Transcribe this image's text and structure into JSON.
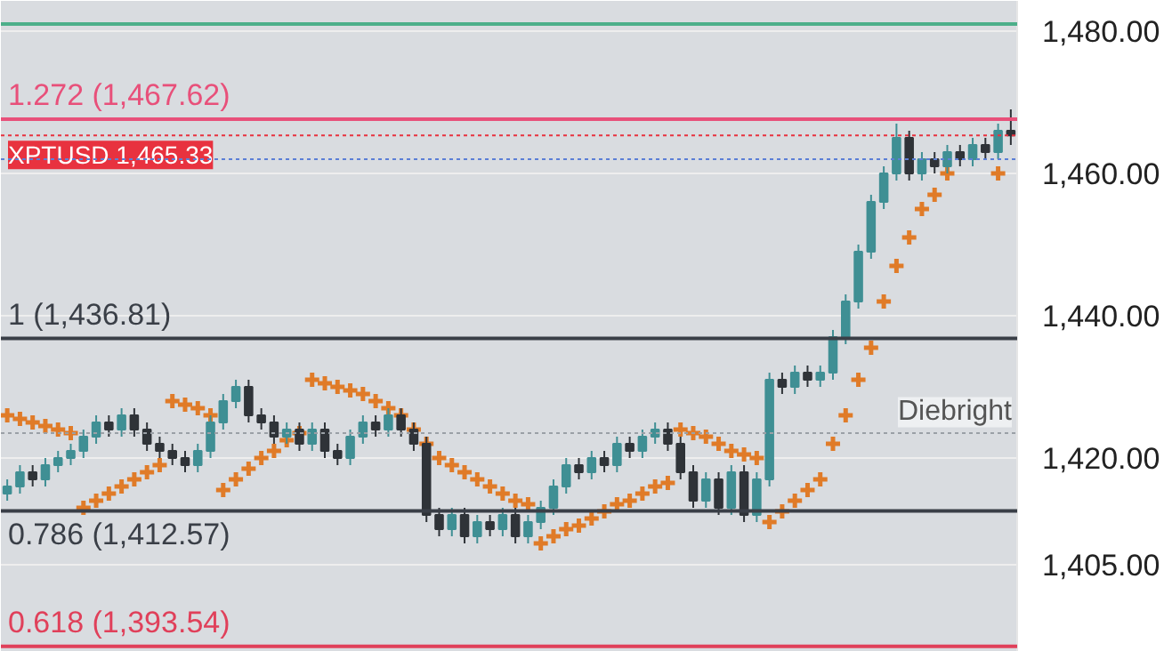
{
  "chart_data": {
    "type": "candlestick",
    "categories": [
      null,
      null,
      null,
      null,
      null,
      null,
      null,
      null,
      null,
      null,
      null,
      null,
      null,
      null,
      null,
      null,
      null,
      null,
      null,
      null,
      null,
      null,
      null,
      null,
      null,
      null,
      null,
      null,
      null,
      null,
      null,
      null,
      null,
      null,
      null,
      null,
      null,
      null,
      null,
      null,
      null,
      null,
      null,
      null,
      null,
      null,
      null,
      null,
      null,
      null,
      null,
      null,
      null,
      null,
      null,
      null,
      null,
      null,
      null,
      null,
      null,
      null,
      null,
      null,
      null,
      null,
      null,
      null,
      null,
      null,
      null,
      null,
      null,
      null,
      null,
      null,
      null,
      null,
      null,
      null
    ],
    "colors": [
      "#3f8f94",
      "#3f8f94",
      "#2f3338",
      "#3f8f94",
      "#3f8f94",
      "#3f8f94",
      "#3f8f94",
      "#3f8f94",
      "#2f3338",
      "#3f8f94",
      "#2f3338",
      "#2f3338",
      "#2f3338",
      "#2f3338",
      "#2f3338",
      "#3f8f94",
      "#3f8f94",
      "#3f8f94",
      "#3f8f94",
      "#2f3338",
      "#2f3338",
      "#2f3338",
      "#3f8f94",
      "#2f3338",
      "#3f8f94",
      "#2f3338",
      "#2f3338",
      "#3f8f94",
      "#3f8f94",
      "#2f3338",
      "#3f8f94",
      "#2f3338",
      "#2f3338",
      "#2f3338",
      "#2f3338",
      "#3f8f94",
      "#2f3338",
      "#3f8f94",
      "#2f3338",
      "#3f8f94",
      "#2f3338",
      "#3f8f94",
      "#3f8f94",
      "#3f8f94",
      "#3f8f94",
      "#2f3338",
      "#3f8f94",
      "#2f3338",
      "#3f8f94",
      "#2f3338",
      "#3f8f94",
      "#3f8f94",
      "#2f3338",
      "#2f3338",
      "#2f3338",
      "#3f8f94",
      "#2f3338",
      "#3f8f94",
      "#2f3338",
      "#3f8f94",
      "#3f8f94",
      "#2f3338",
      "#3f8f94",
      "#2f3338",
      "#3f8f94",
      "#3f8f94",
      "#3f8f94",
      "#3f8f94",
      "#3f8f94",
      "#3f8f94",
      "#3f8f94",
      "#2f3338",
      "#3f8f94",
      "#2f3338",
      "#3f8f94",
      "#2f3338",
      "#3f8f94",
      "#2f3338",
      "#3f8f94",
      "#2f3338"
    ],
    "ohlc": [
      [
        1415,
        1417,
        1414,
        1416
      ],
      [
        1416,
        1419,
        1415,
        1418
      ],
      [
        1418,
        1419,
        1416,
        1417
      ],
      [
        1417,
        1420,
        1416,
        1419
      ],
      [
        1419,
        1421,
        1418,
        1420
      ],
      [
        1420,
        1422,
        1419,
        1421
      ],
      [
        1421,
        1424,
        1420,
        1423
      ],
      [
        1423,
        1426,
        1422,
        1425
      ],
      [
        1425,
        1426,
        1423,
        1424
      ],
      [
        1424,
        1427,
        1423,
        1426
      ],
      [
        1426,
        1427,
        1423,
        1424
      ],
      [
        1424,
        1425,
        1421,
        1422
      ],
      [
        1422,
        1423,
        1420,
        1421
      ],
      [
        1421,
        1422,
        1419,
        1420
      ],
      [
        1420,
        1421,
        1418,
        1419
      ],
      [
        1419,
        1422,
        1418,
        1421
      ],
      [
        1421,
        1426,
        1420,
        1425
      ],
      [
        1425,
        1429,
        1424,
        1428
      ],
      [
        1428,
        1431,
        1427,
        1430
      ],
      [
        1430,
        1431,
        1425,
        1426
      ],
      [
        1426,
        1427,
        1424,
        1425
      ],
      [
        1425,
        1426,
        1422,
        1423
      ],
      [
        1423,
        1425,
        1422,
        1424
      ],
      [
        1424,
        1425,
        1421,
        1422
      ],
      [
        1422,
        1425,
        1421,
        1424
      ],
      [
        1424,
        1425,
        1420,
        1421
      ],
      [
        1421,
        1422,
        1419,
        1420
      ],
      [
        1420,
        1424,
        1419,
        1423
      ],
      [
        1423,
        1426,
        1422,
        1425
      ],
      [
        1425,
        1426,
        1423,
        1424
      ],
      [
        1424,
        1427,
        1423,
        1426
      ],
      [
        1426,
        1427,
        1423,
        1424
      ],
      [
        1424,
        1425,
        1421,
        1422
      ],
      [
        1422,
        1423,
        1411,
        1412
      ],
      [
        1412,
        1413,
        1409,
        1410
      ],
      [
        1410,
        1413,
        1409,
        1412
      ],
      [
        1412,
        1413,
        1408,
        1409
      ],
      [
        1409,
        1412,
        1408,
        1411
      ],
      [
        1411,
        1412,
        1409,
        1410
      ],
      [
        1410,
        1413,
        1409,
        1412
      ],
      [
        1412,
        1413,
        1408,
        1409
      ],
      [
        1409,
        1412,
        1408,
        1411
      ],
      [
        1411,
        1414,
        1410,
        1413
      ],
      [
        1413,
        1417,
        1412,
        1416
      ],
      [
        1416,
        1420,
        1415,
        1419
      ],
      [
        1419,
        1420,
        1417,
        1418
      ],
      [
        1418,
        1421,
        1417,
        1420
      ],
      [
        1420,
        1421,
        1418,
        1419
      ],
      [
        1419,
        1423,
        1418,
        1422
      ],
      [
        1422,
        1423,
        1420,
        1421
      ],
      [
        1421,
        1424,
        1420,
        1423
      ],
      [
        1423,
        1425,
        1422,
        1424
      ],
      [
        1424,
        1425,
        1421,
        1422
      ],
      [
        1422,
        1423,
        1417,
        1418
      ],
      [
        1418,
        1419,
        1413,
        1414
      ],
      [
        1414,
        1418,
        1413,
        1417
      ],
      [
        1417,
        1418,
        1412,
        1413
      ],
      [
        1413,
        1419,
        1412,
        1418
      ],
      [
        1418,
        1419,
        1411,
        1412
      ],
      [
        1412,
        1418,
        1411,
        1417
      ],
      [
        1417,
        1432,
        1416,
        1431
      ],
      [
        1431,
        1432,
        1429,
        1430
      ],
      [
        1430,
        1433,
        1429,
        1432
      ],
      [
        1432,
        1433,
        1430,
        1431
      ],
      [
        1431,
        1433,
        1430,
        1432
      ],
      [
        1432,
        1438,
        1431,
        1437
      ],
      [
        1437,
        1443,
        1436,
        1442
      ],
      [
        1442,
        1450,
        1441,
        1449
      ],
      [
        1449,
        1457,
        1448,
        1456
      ],
      [
        1456,
        1461,
        1455,
        1460
      ],
      [
        1460,
        1467,
        1459,
        1465
      ],
      [
        1465,
        1466,
        1459,
        1460
      ],
      [
        1460,
        1463,
        1459,
        1462
      ],
      [
        1462,
        1463,
        1460,
        1461
      ],
      [
        1461,
        1464,
        1460,
        1463
      ],
      [
        1463,
        1464,
        1461,
        1462
      ],
      [
        1462,
        1465,
        1461,
        1464
      ],
      [
        1464,
        1465,
        1462,
        1463
      ],
      [
        1463,
        1467,
        1462,
        1466
      ],
      [
        1466,
        1469,
        1464,
        1465.33
      ]
    ],
    "series": [
      {
        "type": "scatter",
        "marker": "cross",
        "color": "#e07b28",
        "values": [
          1426,
          1425.5,
          1425,
          1424.5,
          1424,
          1423.5,
          1413,
          1414,
          1415,
          1416,
          1417,
          1418,
          1419,
          1428,
          1427.5,
          1427,
          1426,
          1415.5,
          1417,
          1418.5,
          1420,
          1421,
          1422.5,
          1423.5,
          1431,
          1430.5,
          1430,
          1429.5,
          1429,
          1428,
          1427,
          1426,
          1424,
          1422,
          1420,
          1419,
          1418,
          1417,
          1416,
          1415,
          1414,
          1413.5,
          1408,
          1409,
          1410,
          1410.5,
          1411.5,
          1412.5,
          1413.5,
          1414,
          1415,
          1416,
          1416.5,
          1424,
          1423.5,
          1423,
          1422,
          1421,
          1420.5,
          1420,
          1411,
          1412.5,
          1414,
          1415.5,
          1417,
          1422,
          1426,
          1431,
          1435.5,
          1442,
          1447,
          1451,
          1455,
          1457,
          1460,
          null,
          null,
          null,
          1460,
          null
        ]
      }
    ],
    "ylim": [
      1392.75,
      1484.25
    ],
    "yticks": [
      {
        "value": 1405,
        "label": "1,405.00"
      },
      {
        "value": 1420,
        "label": "1,420.00"
      },
      {
        "value": 1440,
        "label": "1,440.00"
      },
      {
        "value": 1460,
        "label": "1,460.00"
      },
      {
        "value": 1480,
        "label": "1,480.00"
      }
    ],
    "grid": "y",
    "ref_lines": [
      {
        "axis": "y",
        "value": 1481,
        "label": null,
        "color": "#4caf8a",
        "line_style": "solid"
      },
      {
        "axis": "y",
        "value": 1467.62,
        "label": "1.272 (1,467.62)",
        "color": "#e8507a",
        "line_style": "solid"
      },
      {
        "axis": "y",
        "value": 1465.33,
        "label": "XPTUSD 1,465.33",
        "color": "#e8323f",
        "line_style": "dotted"
      },
      {
        "axis": "y",
        "value": 1462,
        "label": null,
        "color": "#5b7fd6",
        "line_style": "dotted"
      },
      {
        "axis": "y",
        "value": 1436.81,
        "label": "1 (1,436.81)",
        "color": "#3a3f47",
        "line_style": "solid"
      },
      {
        "axis": "y",
        "value": 1423.5,
        "label": null,
        "color": "#9aa0a6",
        "line_style": "dotted"
      },
      {
        "axis": "y",
        "value": 1412.57,
        "label": "0.786 (1,412.57)",
        "color": "#3a3f47",
        "line_style": "solid"
      },
      {
        "axis": "y",
        "value": 1393.54,
        "label": "0.618 (1,393.54)",
        "color": "#e0405a",
        "line_style": "solid"
      }
    ],
    "annotations": [
      "Diebright"
    ]
  }
}
